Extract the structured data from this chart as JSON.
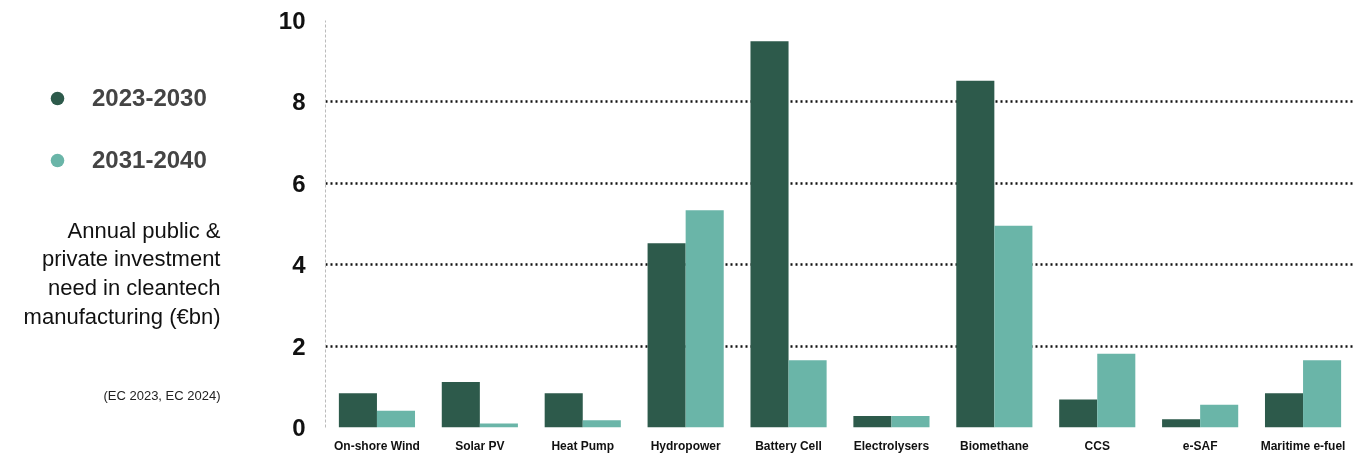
{
  "chart_data": {
    "type": "bar",
    "ylabel": "Annual public & private investment need in cleantech manufacturing (€bn)",
    "annotations": [
      "(EC 2023, EC 2024)"
    ],
    "categories": [
      "On-shore Wind",
      "Solar PV",
      "Heat Pump",
      "Hydropower",
      "Battery Cell",
      "Electrolysers",
      "Biomethane",
      "CCS",
      "e-SAF",
      "Maritime e-fuel"
    ],
    "series": [
      {
        "name": "2023-2030",
        "color": "#2d5a4b",
        "values": [
          0.84,
          1.12,
          0.84,
          4.53,
          9.49,
          0.28,
          8.52,
          0.69,
          0.2,
          0.84
        ]
      },
      {
        "name": "2031-2040",
        "color": "#6ab5a8",
        "values": [
          0.41,
          0.1,
          0.18,
          5.34,
          1.65,
          0.28,
          4.96,
          1.81,
          0.56,
          1.65
        ]
      }
    ],
    "ylim": [
      0,
      10
    ],
    "yticks": [
      0,
      2,
      4,
      6,
      8,
      10
    ],
    "grid": "y",
    "legend": "left"
  }
}
